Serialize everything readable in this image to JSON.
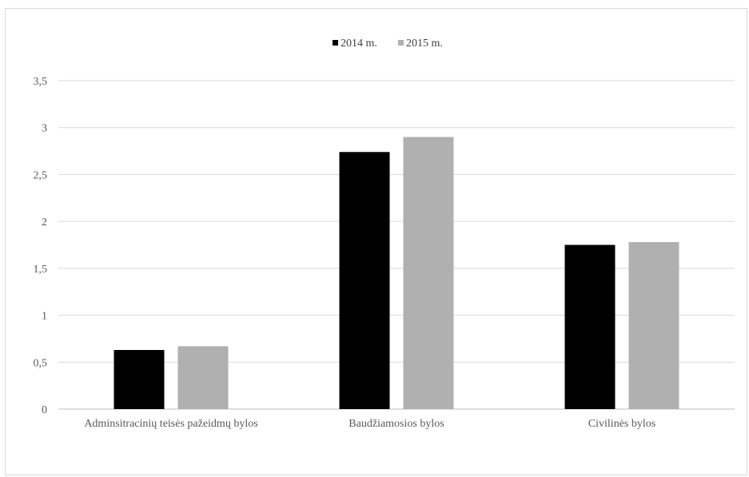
{
  "chart_data": {
    "type": "bar",
    "categories": [
      "Adminsitracinių teisės pažeidmų bylos",
      "Baudžiamosios bylos",
      "Civilinės bylos"
    ],
    "series": [
      {
        "name": "2014 m.",
        "color": "#000000",
        "values": [
          0.63,
          2.74,
          1.75
        ]
      },
      {
        "name": "2015 m.",
        "color": "#b0b0b0",
        "values": [
          0.67,
          2.9,
          1.78
        ]
      }
    ],
    "y_ticks": [
      "0",
      "0,5",
      "1",
      "1,5",
      "2",
      "2,5",
      "3",
      "3,5"
    ],
    "ylim": [
      0,
      3.5
    ],
    "grid": true,
    "legend_position": "top-center",
    "title": "",
    "xlabel": "",
    "ylabel": ""
  }
}
